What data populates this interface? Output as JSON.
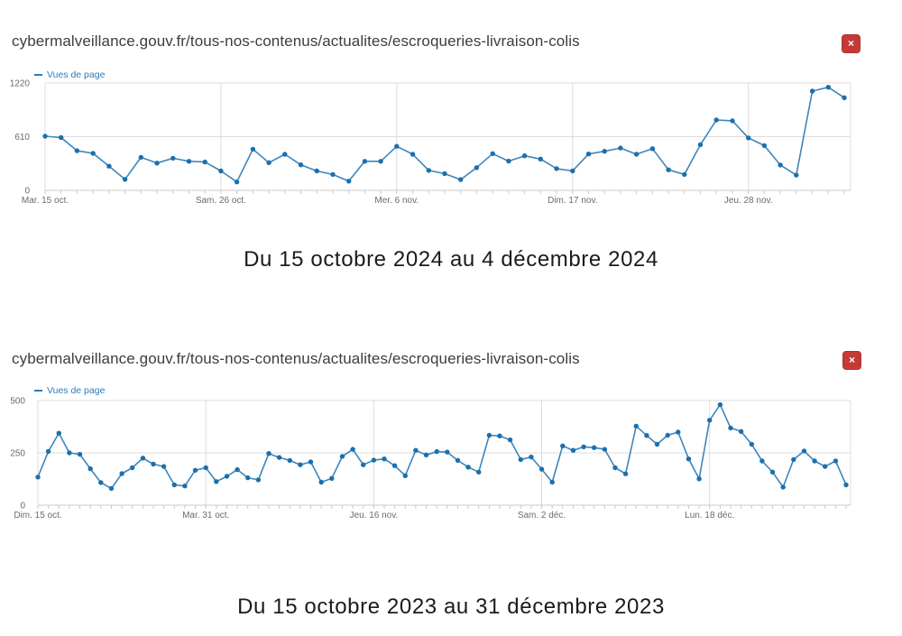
{
  "panels": [
    {
      "url_title": "cybermalveillance.gouv.fr/tous-nos-contenus/actualites/escroqueries-livraison-colis",
      "close_icon": "×",
      "legend_label": "Vues de page",
      "caption": "Du 15 octobre 2024 au 4 décembre 2024"
    },
    {
      "url_title": "cybermalveillance.gouv.fr/tous-nos-contenus/actualites/escroqueries-livraison-colis",
      "close_icon": "×",
      "legend_label": "Vues de page",
      "caption": "Du 15 octobre 2023 au 31 décembre 2023"
    }
  ],
  "colors": {
    "line": "#3c86bd",
    "marker": "#1c6fad",
    "legend_text": "#2e7cb8",
    "grid": "#dcdcdc",
    "axis": "#c9c9c9",
    "tick_text": "#6a6a6a",
    "title_text": "#3d3d3d",
    "caption_text": "#1b1b1b",
    "close_bg": "#c43a36",
    "close_border": "#b03330",
    "close_fg": "#ffffff"
  },
  "chart_data": [
    {
      "type": "line",
      "title": "",
      "legend": [
        "Vues de page"
      ],
      "xlabel": "",
      "ylabel": "",
      "ylim": [
        0,
        1220
      ],
      "grid": true,
      "legend_position": "top-left",
      "n_points": 51,
      "date_range": "2024-10-15 to 2024-12-04",
      "yticks": [
        {
          "v": 0,
          "label": "0"
        },
        {
          "v": 610,
          "label": "610"
        },
        {
          "v": 1220,
          "label": "1220"
        }
      ],
      "x_tick_labels": [
        {
          "index": 0,
          "label": "Mar. 15 oct."
        },
        {
          "index": 11,
          "label": "Sam. 26 oct."
        },
        {
          "index": 22,
          "label": "Mer. 6 nov."
        },
        {
          "index": 33,
          "label": "Dim. 17 nov."
        },
        {
          "index": 44,
          "label": "Jeu. 28 nov."
        }
      ],
      "series": [
        {
          "name": "Vues de page",
          "values": [
            615,
            600,
            450,
            420,
            275,
            125,
            375,
            310,
            365,
            330,
            322,
            220,
            95,
            468,
            315,
            410,
            290,
            220,
            180,
            105,
            330,
            330,
            500,
            410,
            227,
            190,
            122,
            258,
            417,
            332,
            393,
            356,
            247,
            220,
            413,
            444,
            481,
            410,
            474,
            234,
            180,
            519,
            800,
            790,
            596,
            508,
            288,
            173,
            1128,
            1172,
            1053
          ]
        }
      ]
    },
    {
      "type": "line",
      "title": "",
      "legend": [
        "Vues de page"
      ],
      "xlabel": "",
      "ylabel": "",
      "ylim": [
        0,
        500
      ],
      "grid": true,
      "legend_position": "top-left",
      "n_points": 78,
      "date_range": "2023-10-15 to 2023-12-31",
      "yticks": [
        {
          "v": 0,
          "label": "0"
        },
        {
          "v": 250,
          "label": "250"
        },
        {
          "v": 500,
          "label": "500"
        }
      ],
      "x_tick_labels": [
        {
          "index": 0,
          "label": "Dim. 15 oct."
        },
        {
          "index": 16,
          "label": "Mar. 31 oct."
        },
        {
          "index": 32,
          "label": "Jeu. 16 nov."
        },
        {
          "index": 48,
          "label": "Sam. 2 déc."
        },
        {
          "index": 64,
          "label": "Lun. 18 déc."
        }
      ],
      "series": [
        {
          "name": "Vues de page",
          "values": [
            134,
            257,
            344,
            250,
            243,
            174,
            108,
            80,
            151,
            179,
            225,
            196,
            185,
            97,
            92,
            167,
            179,
            113,
            138,
            170,
            131,
            121,
            247,
            228,
            214,
            193,
            207,
            110,
            128,
            233,
            267,
            193,
            215,
            221,
            189,
            141,
            262,
            240,
            256,
            254,
            214,
            182,
            158,
            334,
            331,
            312,
            218,
            230,
            172,
            110,
            283,
            262,
            279,
            275,
            267,
            179,
            150,
            378,
            333,
            291,
            334,
            349,
            221,
            126,
            406,
            480,
            369,
            352,
            291,
            211,
            158,
            86,
            218,
            259,
            211,
            185,
            211,
            97
          ]
        }
      ]
    }
  ]
}
